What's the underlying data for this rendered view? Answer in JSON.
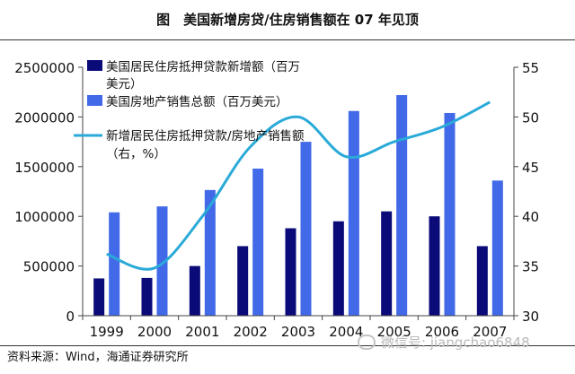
{
  "title": "图　美国新增房贷/住房销售额在 07 年见顶",
  "source": "资料来源：Wind，海通证券研究所",
  "watermark": "微信号: jiangchao6848",
  "colors": {
    "bar_dark": "#0a0a78",
    "bar_light": "#4169e8",
    "line": "#2aaad8",
    "axis": "#444444"
  },
  "chart_data": {
    "type": "bar",
    "categories": [
      "1999",
      "2000",
      "2001",
      "2002",
      "2003",
      "2004",
      "2005",
      "2006",
      "2007"
    ],
    "y_left": {
      "min": 0,
      "max": 2500000,
      "ticks": [
        "0",
        "500000",
        "1000000",
        "1500000",
        "2000000",
        "2500000"
      ]
    },
    "y_right": {
      "min": 30,
      "max": 55,
      "ticks": [
        "30",
        "35",
        "40",
        "45",
        "50",
        "55"
      ]
    },
    "legend": {
      "mortgage_line1": "美国居民住房抵押贷款新增额（百万",
      "mortgage_line2": "美元）",
      "sales": "美国房地产销售总额（百万美元）",
      "ratio_line1": "新增居民住房抵押贷款/房地产销售额",
      "ratio_line2": "（右，%）"
    },
    "series": [
      {
        "name": "美国居民住房抵押贷款新增额（百万美元）",
        "axis": "left",
        "values": [
          375000,
          380000,
          500000,
          700000,
          880000,
          950000,
          1050000,
          1000000,
          700000
        ]
      },
      {
        "name": "美国房地产销售总额（百万美元）",
        "axis": "left",
        "values": [
          1040000,
          1100000,
          1265000,
          1480000,
          1750000,
          2060000,
          2220000,
          2040000,
          1360000
        ]
      },
      {
        "name": "新增居民住房抵押贷款/房地产销售额（右，%）",
        "axis": "right",
        "type": "line",
        "values": [
          36.2,
          34.8,
          40.0,
          47.0,
          50.0,
          46.0,
          47.5,
          49.0,
          51.5
        ]
      }
    ]
  }
}
